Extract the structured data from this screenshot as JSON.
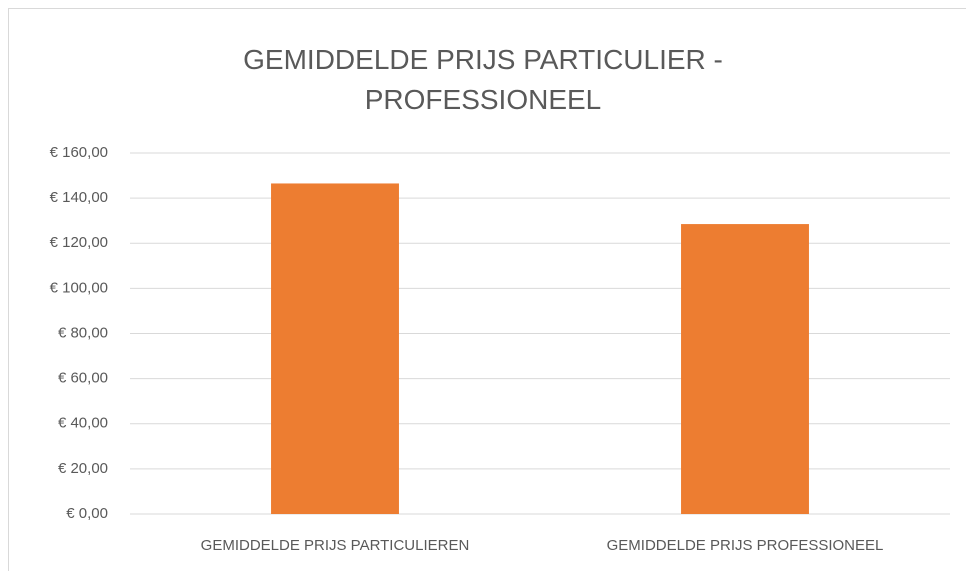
{
  "chart_data": {
    "type": "bar",
    "title": "GEMIDDELDE PRIJS PARTICULIER - PROFESSIONEEL",
    "categories": [
      "GEMIDDELDE PRIJS PARTICULIEREN",
      "GEMIDDELDE PRIJS PROFESSIONEEL"
    ],
    "values": [
      146.5,
      128.5
    ],
    "color": "#ed7d31",
    "ylim": [
      0,
      160
    ],
    "yticks": [
      {
        "value": 0,
        "label": "€ 0,00"
      },
      {
        "value": 20,
        "label": "€ 20,00"
      },
      {
        "value": 40,
        "label": "€ 40,00"
      },
      {
        "value": 60,
        "label": "€ 60,00"
      },
      {
        "value": 80,
        "label": "€ 80,00"
      },
      {
        "value": 100,
        "label": "€ 100,00"
      },
      {
        "value": 120,
        "label": "€ 120,00"
      },
      {
        "value": 140,
        "label": "€ 140,00"
      },
      {
        "value": 160,
        "label": "€ 160,00"
      }
    ],
    "grid": true
  }
}
